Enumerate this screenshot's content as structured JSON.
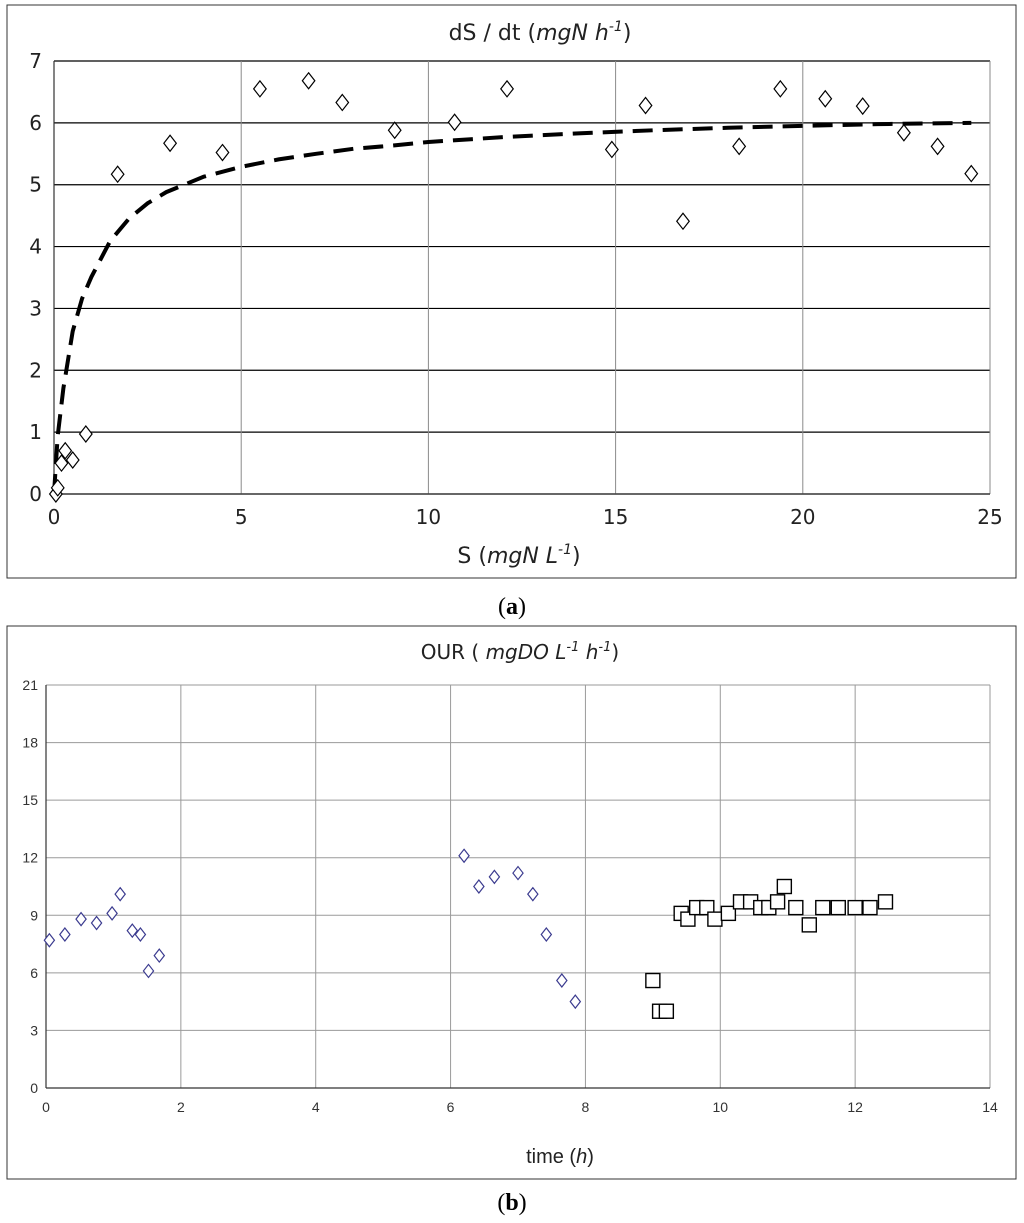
{
  "charts": [
    {
      "caption_open": "(",
      "caption_letter": "a",
      "caption_close": ")",
      "title_pre": "dS / dt (",
      "title_unit": "mgN h",
      "title_sup": "-1",
      "title_post": ")",
      "xlabel_pre": "S (",
      "xlabel_unit": "mgN L",
      "xlabel_sup": "-1",
      "xlabel_post": ")"
    },
    {
      "caption_open": "(",
      "caption_letter": "b",
      "caption_close": ")",
      "title_pre": "OUR ( ",
      "title_unit1": "mgDO L",
      "title_sup1": "-1",
      "title_unit2": " h",
      "title_sup2": "-1",
      "title_post": ")",
      "xlabel_pre": "time (",
      "xlabel_unit": "h",
      "xlabel_post": ")"
    }
  ],
  "chart_data": [
    {
      "type": "scatter",
      "title": "dS / dt (mgN h-1)",
      "xlabel": "S (mgN L-1)",
      "ylabel": "",
      "xlim": [
        0,
        25
      ],
      "ylim": [
        0,
        7
      ],
      "xticks": [
        0,
        5,
        10,
        15,
        20,
        25
      ],
      "yticks": [
        0,
        1,
        2,
        3,
        4,
        5,
        6,
        7
      ],
      "grid": true,
      "legend": "none",
      "marker_color": "#000000",
      "series": [
        {
          "marker": "diamond",
          "x": [
            0.05,
            0.1,
            0.2,
            0.3,
            0.5,
            0.85,
            1.7,
            3.1,
            4.5,
            5.5,
            6.8,
            7.7,
            9.1,
            10.7,
            12.1,
            14.9,
            15.8,
            16.8,
            18.3,
            19.4,
            20.6,
            21.6,
            22.7,
            23.6,
            24.5
          ],
          "y": [
            0.0,
            0.1,
            0.5,
            0.7,
            0.55,
            0.97,
            5.17,
            5.67,
            5.52,
            6.55,
            6.68,
            6.33,
            5.88,
            6.01,
            6.55,
            5.57,
            6.28,
            4.41,
            5.62,
            6.55,
            6.39,
            6.27,
            5.84,
            5.62,
            5.18
          ]
        },
        {
          "type": "line",
          "style": "dashed",
          "x": [
            0,
            0.1,
            0.25,
            0.5,
            0.75,
            1,
            1.5,
            2,
            2.5,
            3,
            4,
            5,
            6,
            7,
            8,
            9,
            10,
            12,
            14,
            16,
            18,
            20,
            22,
            24.5
          ],
          "y": [
            0,
            0.94,
            1.71,
            2.63,
            3.16,
            3.51,
            4.09,
            4.45,
            4.7,
            4.88,
            5.13,
            5.29,
            5.41,
            5.5,
            5.58,
            5.63,
            5.69,
            5.77,
            5.83,
            5.88,
            5.92,
            5.95,
            5.98,
            6.0
          ]
        }
      ]
    },
    {
      "type": "scatter",
      "title": "OUR ( mgDO L-1 h-1)",
      "xlabel": "time (h)",
      "ylabel": "",
      "xlim": [
        0,
        14
      ],
      "ylim": [
        0,
        21
      ],
      "xticks": [
        0,
        2,
        4,
        6,
        8,
        10,
        12,
        14
      ],
      "yticks": [
        0,
        3,
        6,
        9,
        12,
        15,
        18,
        21
      ],
      "grid": true,
      "legend": "none",
      "series": [
        {
          "marker": "diamond",
          "color": "#3b3b8f",
          "x": [
            0.05,
            0.28,
            0.52,
            0.75,
            0.98,
            1.1,
            1.28,
            1.4,
            1.52,
            1.68,
            6.2,
            6.42,
            6.65,
            7.0,
            7.22,
            7.42,
            7.65,
            7.85
          ],
          "y": [
            7.7,
            8.0,
            8.8,
            8.6,
            9.1,
            10.1,
            8.2,
            8.0,
            6.1,
            6.9,
            12.1,
            10.5,
            11.0,
            11.2,
            10.1,
            8.0,
            5.6,
            4.5
          ]
        },
        {
          "marker": "square",
          "color": "#000000",
          "x": [
            9.0,
            9.1,
            9.2,
            9.42,
            9.52,
            9.65,
            9.8,
            9.92,
            10.12,
            10.3,
            10.45,
            10.6,
            10.72,
            10.85,
            10.95,
            11.12,
            11.32,
            11.52,
            11.75,
            12.0,
            12.22,
            12.45
          ],
          "y": [
            5.6,
            4.0,
            4.0,
            9.1,
            8.8,
            9.4,
            9.4,
            8.8,
            9.1,
            9.7,
            9.7,
            9.4,
            9.4,
            9.7,
            10.5,
            9.4,
            8.5,
            9.4,
            9.4,
            9.4,
            9.4,
            9.7
          ]
        }
      ]
    }
  ]
}
